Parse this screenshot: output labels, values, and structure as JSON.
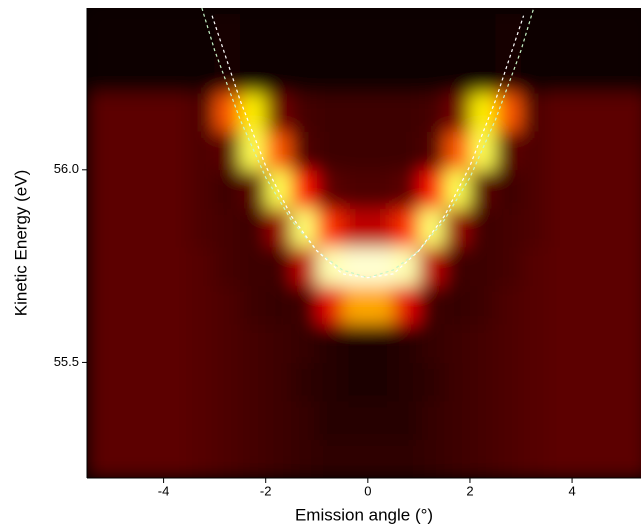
{
  "chart_data": {
    "type": "heatmap",
    "xlabel": "Emission angle (°)",
    "ylabel": "Kinetic Energy (eV)",
    "xlim": [
      -5.5,
      5.35
    ],
    "ylim": [
      55.2,
      56.42
    ],
    "xticks": [
      -4,
      -2,
      0,
      2,
      4
    ],
    "yticks": [
      {
        "value": 55.5,
        "label": "55.5"
      },
      {
        "value": 56,
        "label": "56.0"
      }
    ],
    "zlim": [
      0,
      100
    ],
    "colorscale": [
      "#000000",
      "#ff0000",
      "#ffff00",
      "#ffffd0"
    ],
    "xbins": [
      -5.5,
      -5,
      -4.5,
      -4,
      -3.5,
      -3,
      -2.5,
      -2,
      -1.5,
      -1,
      -0.5,
      0,
      0.5,
      1,
      1.5,
      2,
      2.5,
      3,
      3.5,
      4,
      4.5,
      5,
      5.5
    ],
    "ybins": [
      55.2,
      55.3,
      55.4,
      55.5,
      55.6,
      55.7,
      55.8,
      55.9,
      56.0,
      56.1,
      56.2,
      56.42
    ],
    "z": [
      [
        12,
        12,
        12,
        12,
        11,
        10,
        9,
        8,
        7,
        6,
        6,
        6,
        6,
        7,
        8,
        9,
        10,
        11,
        12,
        12,
        12,
        12
      ],
      [
        12,
        12,
        12,
        12,
        11,
        10,
        9,
        8,
        7,
        5,
        5,
        5,
        5,
        7,
        8,
        9,
        10,
        11,
        12,
        12,
        12,
        12
      ],
      [
        12,
        12,
        12,
        12,
        11,
        10,
        9,
        8,
        6,
        5,
        4,
        4,
        5,
        6,
        8,
        9,
        10,
        11,
        12,
        12,
        12,
        12
      ],
      [
        12,
        12,
        12,
        12,
        11,
        10,
        9,
        8,
        7,
        5,
        4,
        4,
        5,
        7,
        8,
        9,
        10,
        11,
        12,
        12,
        12,
        12
      ],
      [
        12,
        12,
        12,
        12,
        11,
        10,
        8,
        7,
        8,
        30,
        55,
        55,
        30,
        8,
        7,
        8,
        10,
        11,
        12,
        12,
        12,
        12
      ],
      [
        12,
        12,
        12,
        12,
        11,
        9,
        8,
        8,
        25,
        95,
        100,
        100,
        95,
        25,
        8,
        8,
        9,
        11,
        12,
        12,
        12,
        12
      ],
      [
        12,
        12,
        12,
        12,
        10,
        9,
        8,
        20,
        85,
        40,
        25,
        25,
        40,
        85,
        20,
        8,
        9,
        10,
        12,
        12,
        12,
        12
      ],
      [
        12,
        12,
        12,
        12,
        10,
        8,
        12,
        80,
        35,
        12,
        10,
        10,
        12,
        35,
        80,
        12,
        8,
        10,
        12,
        12,
        12,
        12
      ],
      [
        12,
        12,
        12,
        12,
        10,
        12,
        80,
        45,
        10,
        8,
        8,
        8,
        8,
        10,
        45,
        80,
        12,
        10,
        12,
        12,
        12,
        12
      ],
      [
        12,
        12,
        12,
        12,
        10,
        45,
        65,
        15,
        9,
        8,
        8,
        8,
        8,
        9,
        15,
        65,
        45,
        10,
        12,
        12,
        12,
        12
      ],
      [
        1,
        1,
        1,
        1,
        1,
        3,
        2,
        1,
        1,
        1,
        1,
        1,
        1,
        1,
        1,
        2,
        3,
        1,
        1,
        1,
        1,
        1
      ]
    ],
    "series": [
      {
        "color": "#c8f5c8",
        "x": [
          -3.25,
          -3,
          -2.5,
          -2,
          -1.5,
          -1,
          -0.5,
          0,
          0.5,
          1,
          1.5,
          2,
          2.5,
          3,
          3.25
        ],
        "y": [
          56.42,
          56.31,
          56.13,
          55.98,
          55.87,
          55.79,
          55.74,
          55.72,
          55.74,
          55.79,
          55.87,
          55.98,
          56.13,
          56.31,
          56.42
        ]
      },
      {
        "color": "#ffffff",
        "x": [
          -3.05,
          -2.5,
          -2,
          -1.5,
          -1,
          -0.5,
          0,
          0.5,
          1,
          1.5,
          2,
          2.5,
          3.05
        ],
        "y": [
          56.4,
          56.18,
          56.01,
          55.88,
          55.79,
          55.73,
          55.72,
          55.73,
          55.79,
          55.88,
          56.01,
          56.18,
          56.4
        ]
      }
    ]
  }
}
